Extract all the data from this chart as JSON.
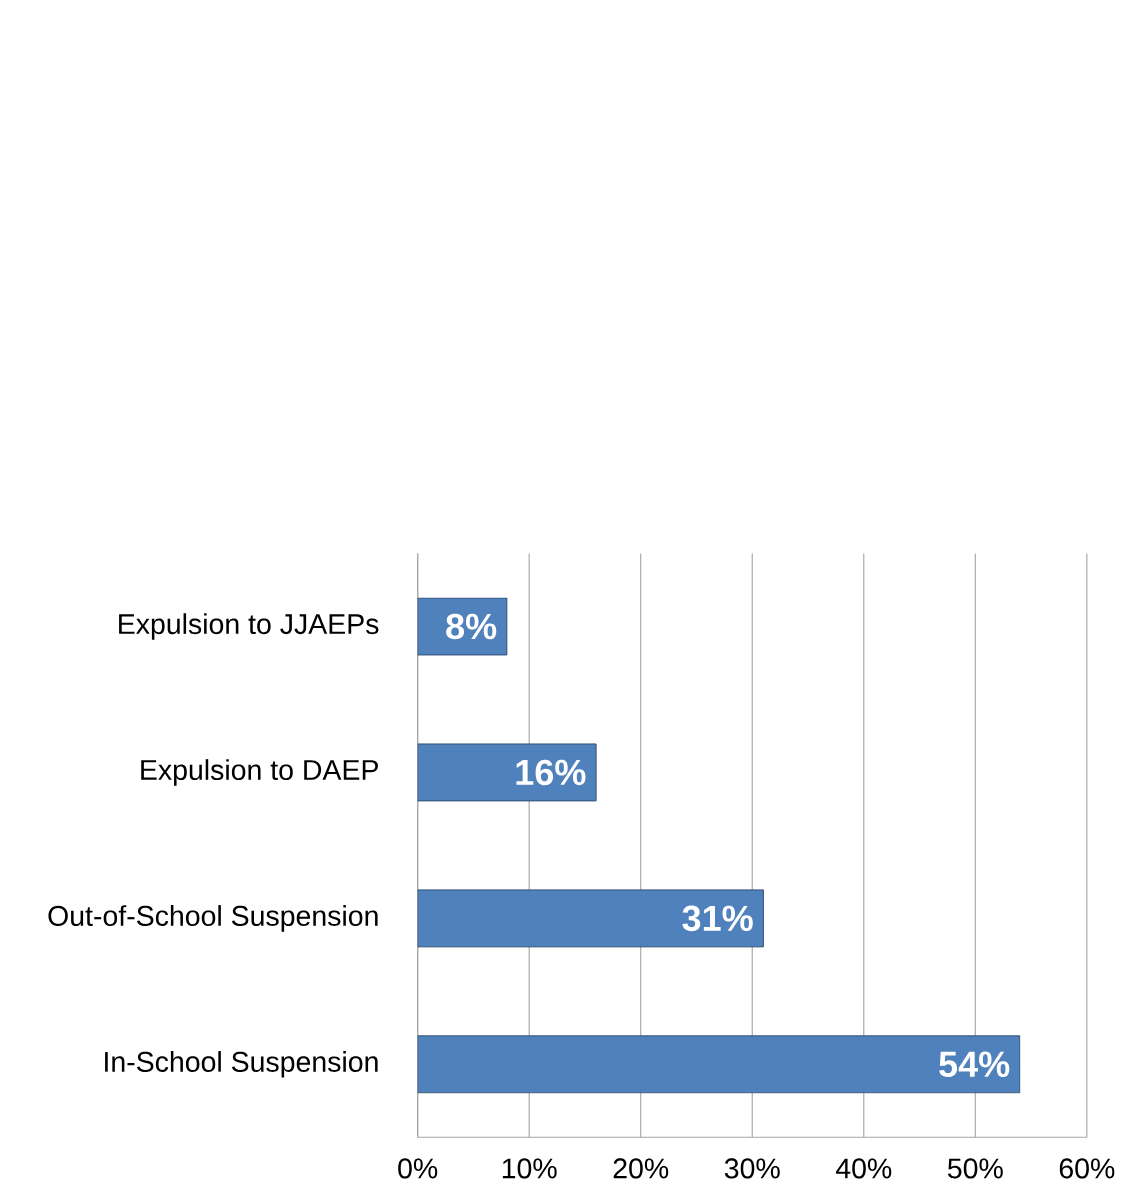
{
  "chart_data": {
    "type": "bar",
    "orientation": "horizontal",
    "categories": [
      "Expulsion to JJAEPs",
      "Expulsion to DAEP",
      "Out-of-School Suspension",
      "In-School Suspension"
    ],
    "values": [
      8,
      16,
      31,
      54
    ],
    "value_labels": [
      "8%",
      "16%",
      "31%",
      "54%"
    ],
    "color": "#4f81bd",
    "xlim": [
      0,
      60
    ],
    "xticks": [
      {
        "value": 0,
        "label": "0%"
      },
      {
        "value": 10,
        "label": "10%"
      },
      {
        "value": 20,
        "label": "20%"
      },
      {
        "value": 30,
        "label": "30%"
      },
      {
        "value": 40,
        "label": "40%"
      },
      {
        "value": 50,
        "label": "50%"
      },
      {
        "value": 60,
        "label": "60%"
      }
    ],
    "grid": "x"
  }
}
